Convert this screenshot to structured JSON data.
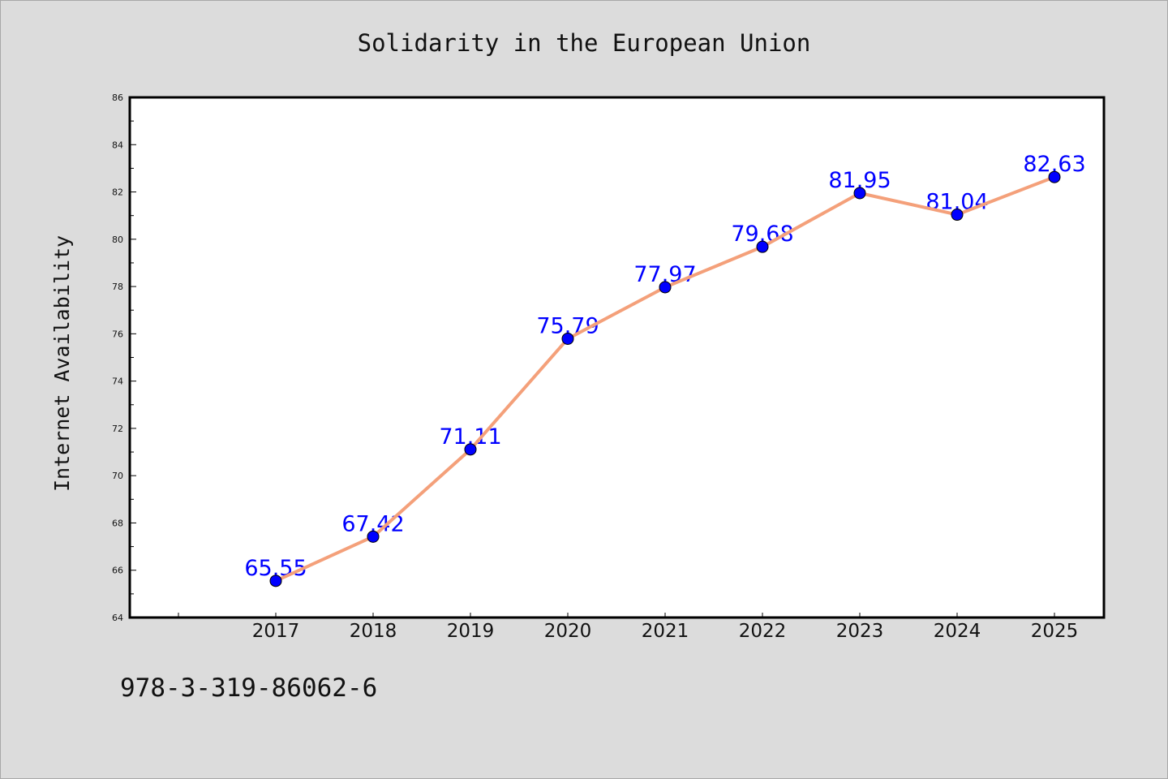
{
  "chart_data": {
    "type": "line",
    "title": "Solidarity in the European Union",
    "xlabel": "",
    "ylabel": "Internet Availability",
    "categories": [
      "2017",
      "2018",
      "2019",
      "2020",
      "2021",
      "2022",
      "2023",
      "2024",
      "2025"
    ],
    "values": [
      65.55,
      67.42,
      71.11,
      75.79,
      77.97,
      79.68,
      81.95,
      81.04,
      82.63
    ],
    "data_labels": [
      "65.55",
      "67.42",
      "71.11",
      "75.79",
      "77.97",
      "79.68",
      "81.95",
      "81.04",
      "82.63"
    ],
    "ylim": [
      64,
      86
    ],
    "yticks": [
      "64",
      "66",
      "68",
      "70",
      "72",
      "74",
      "76",
      "78",
      "80",
      "82",
      "84",
      "86"
    ],
    "grid": false,
    "legend": "none",
    "line_color": "#f4a07a",
    "marker_color": "#0000ff",
    "label_color": "#0000ff",
    "plot_background": "#ffffff",
    "page_background": "#dcdcdc"
  },
  "footer": {
    "code": "978-3-319-86062-6"
  }
}
